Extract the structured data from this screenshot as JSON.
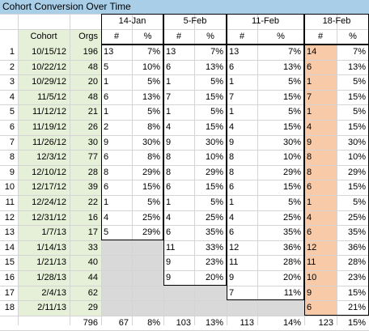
{
  "title": "Cohort Conversion Over Time",
  "colors": {
    "title_bg": "#a9cfe8",
    "cohort_bg": "#e6efd8",
    "highlight_bg": "#f8caa8",
    "gray_fill": "#d9d9d9"
  },
  "header": {
    "cohort_label": "Cohort",
    "orgs_label": "Orgs",
    "groups": [
      "14-Jan",
      "5-Feb",
      "11-Feb",
      "18-Feb"
    ],
    "num_label": "#",
    "pct_label": "%"
  },
  "rows": [
    {
      "idx": "1",
      "cohort": "10/15/12",
      "orgs": "196",
      "v": [
        [
          "13",
          "7%"
        ],
        [
          "13",
          "7%"
        ],
        [
          "13",
          "7%"
        ],
        [
          "14",
          "7%"
        ]
      ]
    },
    {
      "idx": "2",
      "cohort": "10/22/12",
      "orgs": "48",
      "v": [
        [
          "5",
          "10%"
        ],
        [
          "6",
          "13%"
        ],
        [
          "6",
          "13%"
        ],
        [
          "6",
          "13%"
        ]
      ]
    },
    {
      "idx": "3",
      "cohort": "10/29/12",
      "orgs": "20",
      "v": [
        [
          "1",
          "5%"
        ],
        [
          "1",
          "5%"
        ],
        [
          "1",
          "5%"
        ],
        [
          "1",
          "5%"
        ]
      ]
    },
    {
      "idx": "4",
      "cohort": "11/5/12",
      "orgs": "48",
      "v": [
        [
          "6",
          "13%"
        ],
        [
          "7",
          "15%"
        ],
        [
          "7",
          "15%"
        ],
        [
          "7",
          "15%"
        ]
      ]
    },
    {
      "idx": "5",
      "cohort": "11/12/12",
      "orgs": "21",
      "v": [
        [
          "1",
          "5%"
        ],
        [
          "1",
          "5%"
        ],
        [
          "1",
          "5%"
        ],
        [
          "1",
          "5%"
        ]
      ]
    },
    {
      "idx": "6",
      "cohort": "11/19/12",
      "orgs": "26",
      "v": [
        [
          "2",
          "8%"
        ],
        [
          "4",
          "15%"
        ],
        [
          "4",
          "15%"
        ],
        [
          "4",
          "15%"
        ]
      ]
    },
    {
      "idx": "7",
      "cohort": "11/26/12",
      "orgs": "30",
      "v": [
        [
          "9",
          "30%"
        ],
        [
          "9",
          "30%"
        ],
        [
          "9",
          "30%"
        ],
        [
          "9",
          "30%"
        ]
      ]
    },
    {
      "idx": "8",
      "cohort": "12/3/12",
      "orgs": "77",
      "v": [
        [
          "6",
          "8%"
        ],
        [
          "8",
          "10%"
        ],
        [
          "8",
          "10%"
        ],
        [
          "8",
          "10%"
        ]
      ]
    },
    {
      "idx": "9",
      "cohort": "12/10/12",
      "orgs": "28",
      "v": [
        [
          "8",
          "29%"
        ],
        [
          "8",
          "29%"
        ],
        [
          "8",
          "29%"
        ],
        [
          "8",
          "29%"
        ]
      ]
    },
    {
      "idx": "10",
      "cohort": "12/17/12",
      "orgs": "39",
      "v": [
        [
          "6",
          "15%"
        ],
        [
          "6",
          "15%"
        ],
        [
          "6",
          "15%"
        ],
        [
          "6",
          "15%"
        ]
      ]
    },
    {
      "idx": "11",
      "cohort": "12/24/12",
      "orgs": "22",
      "v": [
        [
          "1",
          "5%"
        ],
        [
          "1",
          "5%"
        ],
        [
          "1",
          "5%"
        ],
        [
          "1",
          "5%"
        ]
      ]
    },
    {
      "idx": "12",
      "cohort": "12/31/12",
      "orgs": "16",
      "v": [
        [
          "4",
          "25%"
        ],
        [
          "4",
          "25%"
        ],
        [
          "4",
          "25%"
        ],
        [
          "4",
          "25%"
        ]
      ]
    },
    {
      "idx": "13",
      "cohort": "1/7/13",
      "orgs": "17",
      "v": [
        [
          "5",
          "29%"
        ],
        [
          "6",
          "35%"
        ],
        [
          "6",
          "35%"
        ],
        [
          "6",
          "35%"
        ]
      ]
    },
    {
      "idx": "14",
      "cohort": "1/14/13",
      "orgs": "33",
      "v": [
        null,
        [
          "11",
          "33%"
        ],
        [
          "12",
          "36%"
        ],
        [
          "12",
          "36%"
        ]
      ]
    },
    {
      "idx": "15",
      "cohort": "1/21/13",
      "orgs": "40",
      "v": [
        null,
        [
          "9",
          "23%"
        ],
        [
          "11",
          "28%"
        ],
        [
          "11",
          "28%"
        ]
      ]
    },
    {
      "idx": "16",
      "cohort": "1/28/13",
      "orgs": "44",
      "v": [
        null,
        [
          "9",
          "20%"
        ],
        [
          "9",
          "20%"
        ],
        [
          "10",
          "23%"
        ]
      ]
    },
    {
      "idx": "17",
      "cohort": "2/4/13",
      "orgs": "62",
      "v": [
        null,
        null,
        [
          "7",
          "11%"
        ],
        [
          "9",
          "15%"
        ]
      ]
    },
    {
      "idx": "18",
      "cohort": "2/11/13",
      "orgs": "29",
      "v": [
        null,
        null,
        null,
        [
          "6",
          "21%"
        ]
      ]
    }
  ],
  "totals": {
    "orgs": "796",
    "v": [
      [
        "67",
        "8%"
      ],
      [
        "103",
        "13%"
      ],
      [
        "113",
        "14%"
      ],
      [
        "123",
        "15%"
      ]
    ]
  }
}
